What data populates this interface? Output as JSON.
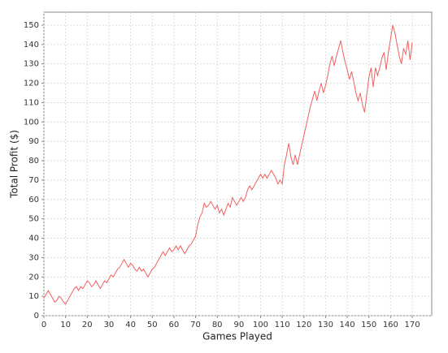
{
  "chart_data": {
    "type": "line",
    "xlabel": "Games Played",
    "ylabel": "Total Profit ($)",
    "x": [
      0,
      1,
      2,
      3,
      4,
      5,
      6,
      7,
      8,
      9,
      10,
      11,
      12,
      13,
      14,
      15,
      16,
      17,
      18,
      19,
      20,
      21,
      22,
      23,
      24,
      25,
      26,
      27,
      28,
      29,
      30,
      31,
      32,
      33,
      34,
      35,
      36,
      37,
      38,
      39,
      40,
      41,
      42,
      43,
      44,
      45,
      46,
      47,
      48,
      49,
      50,
      51,
      52,
      53,
      54,
      55,
      56,
      57,
      58,
      59,
      60,
      61,
      62,
      63,
      64,
      65,
      66,
      67,
      68,
      69,
      70,
      71,
      72,
      73,
      74,
      75,
      76,
      77,
      78,
      79,
      80,
      81,
      82,
      83,
      84,
      85,
      86,
      87,
      88,
      89,
      90,
      91,
      92,
      93,
      94,
      95,
      96,
      97,
      98,
      99,
      100,
      101,
      102,
      103,
      104,
      105,
      106,
      107,
      108,
      109,
      110,
      111,
      112,
      113,
      114,
      115,
      116,
      117,
      118,
      119,
      120,
      121,
      122,
      123,
      124,
      125,
      126,
      127,
      128,
      129,
      130,
      131,
      132,
      133,
      134,
      135,
      136,
      137,
      138,
      139,
      140,
      141,
      142,
      143,
      144,
      145,
      146,
      147,
      148,
      149,
      150,
      151,
      152,
      153,
      154,
      155,
      156,
      157,
      158,
      159,
      160,
      161,
      162,
      163,
      164,
      165,
      166,
      167,
      168,
      169,
      170
    ],
    "series": [
      {
        "color": "#f26060",
        "values": [
          9,
          11,
          13,
          11,
          9,
          7,
          8,
          10,
          9,
          7,
          6,
          8,
          10,
          12,
          14,
          15,
          13,
          15,
          14,
          16,
          18,
          17,
          15,
          16,
          18,
          16,
          14,
          16,
          18,
          17,
          19,
          21,
          20,
          22,
          24,
          25,
          27,
          29,
          27,
          25,
          27,
          26,
          24,
          23,
          25,
          23,
          24,
          22,
          20,
          22,
          24,
          25,
          27,
          29,
          31,
          33,
          31,
          33,
          35,
          33,
          34,
          36,
          34,
          36,
          34,
          32,
          34,
          36,
          37,
          39,
          41,
          47,
          51,
          53,
          58,
          56,
          57,
          59,
          57,
          55,
          57,
          53,
          55,
          52,
          55,
          58,
          56,
          61,
          59,
          57,
          59,
          61,
          59,
          61,
          65,
          67,
          65,
          67,
          69,
          71,
          73,
          71,
          73,
          71,
          73,
          75,
          73,
          71,
          68,
          70,
          68,
          78,
          83,
          89,
          82,
          78,
          83,
          78,
          83,
          88,
          93,
          98,
          103,
          108,
          112,
          116,
          111,
          116,
          120,
          115,
          119,
          124,
          130,
          134,
          129,
          134,
          138,
          142,
          136,
          131,
          127,
          122,
          126,
          121,
          115,
          111,
          115,
          109,
          105,
          114,
          123,
          128,
          118,
          128,
          124,
          128,
          133,
          136,
          127,
          136,
          143,
          150,
          146,
          140,
          134,
          130,
          138,
          135,
          142,
          132,
          141
        ]
      }
    ],
    "xlim": [
      0,
      179
    ],
    "ylim": [
      0,
      156.7
    ],
    "xticks": [
      0,
      10,
      20,
      30,
      40,
      50,
      60,
      70,
      80,
      90,
      100,
      110,
      120,
      130,
      140,
      150,
      160,
      170
    ],
    "yticks": [
      0,
      10,
      20,
      30,
      40,
      50,
      60,
      70,
      80,
      90,
      100,
      110,
      120,
      130,
      140,
      150
    ],
    "grid": true
  }
}
